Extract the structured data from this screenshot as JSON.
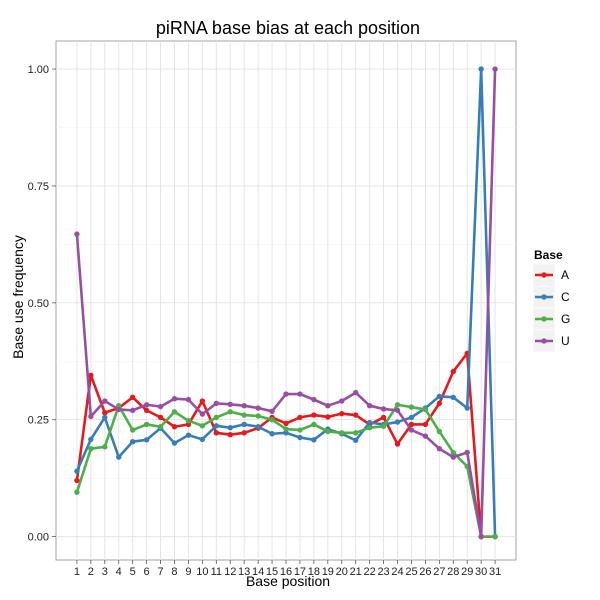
{
  "chart_data": {
    "type": "line",
    "title": "piRNA base bias at each position",
    "xlabel": "Base position",
    "ylabel": "Base use frequency",
    "x": [
      1,
      2,
      3,
      4,
      5,
      6,
      7,
      8,
      9,
      10,
      11,
      12,
      13,
      14,
      15,
      16,
      17,
      18,
      19,
      20,
      21,
      22,
      23,
      24,
      25,
      26,
      27,
      28,
      29,
      30,
      31
    ],
    "ylim": [
      -0.05,
      1.06
    ],
    "yticks": [
      0.0,
      0.25,
      0.5,
      0.75,
      1.0
    ],
    "ytick_labels": [
      "0.00",
      "0.25",
      "0.50",
      "0.75",
      "1.00"
    ],
    "grid": true,
    "legend_title": "Base",
    "legend_position": "right",
    "series": [
      {
        "name": "A",
        "color": "#E41A1C",
        "values": [
          0.12,
          0.345,
          0.265,
          0.275,
          0.298,
          0.27,
          0.255,
          0.235,
          0.24,
          0.29,
          0.222,
          0.218,
          0.222,
          0.232,
          0.255,
          0.242,
          0.255,
          0.26,
          0.256,
          0.263,
          0.26,
          0.24,
          0.255,
          0.198,
          0.24,
          0.24,
          0.285,
          0.353,
          0.392,
          0.0,
          0.0
        ]
      },
      {
        "name": "C",
        "color": "#377EB8",
        "values": [
          0.14,
          0.208,
          0.255,
          0.17,
          0.203,
          0.207,
          0.232,
          0.2,
          0.217,
          0.208,
          0.237,
          0.233,
          0.24,
          0.235,
          0.22,
          0.222,
          0.212,
          0.207,
          0.23,
          0.22,
          0.206,
          0.244,
          0.24,
          0.245,
          0.255,
          0.275,
          0.3,
          0.298,
          0.275,
          1.0,
          0.0
        ]
      },
      {
        "name": "G",
        "color": "#4DAF4A",
        "values": [
          0.095,
          0.188,
          0.192,
          0.28,
          0.228,
          0.24,
          0.235,
          0.267,
          0.248,
          0.237,
          0.255,
          0.267,
          0.26,
          0.258,
          0.25,
          0.23,
          0.228,
          0.24,
          0.225,
          0.222,
          0.222,
          0.233,
          0.236,
          0.282,
          0.277,
          0.272,
          0.225,
          0.18,
          0.15,
          0.0,
          0.0
        ]
      },
      {
        "name": "U",
        "color": "#984EA3",
        "values": [
          0.647,
          0.257,
          0.29,
          0.272,
          0.27,
          0.282,
          0.278,
          0.295,
          0.293,
          0.262,
          0.285,
          0.283,
          0.28,
          0.275,
          0.268,
          0.305,
          0.305,
          0.293,
          0.28,
          0.29,
          0.308,
          0.28,
          0.273,
          0.27,
          0.228,
          0.215,
          0.188,
          0.17,
          0.18,
          0.0,
          1.0
        ]
      }
    ]
  }
}
